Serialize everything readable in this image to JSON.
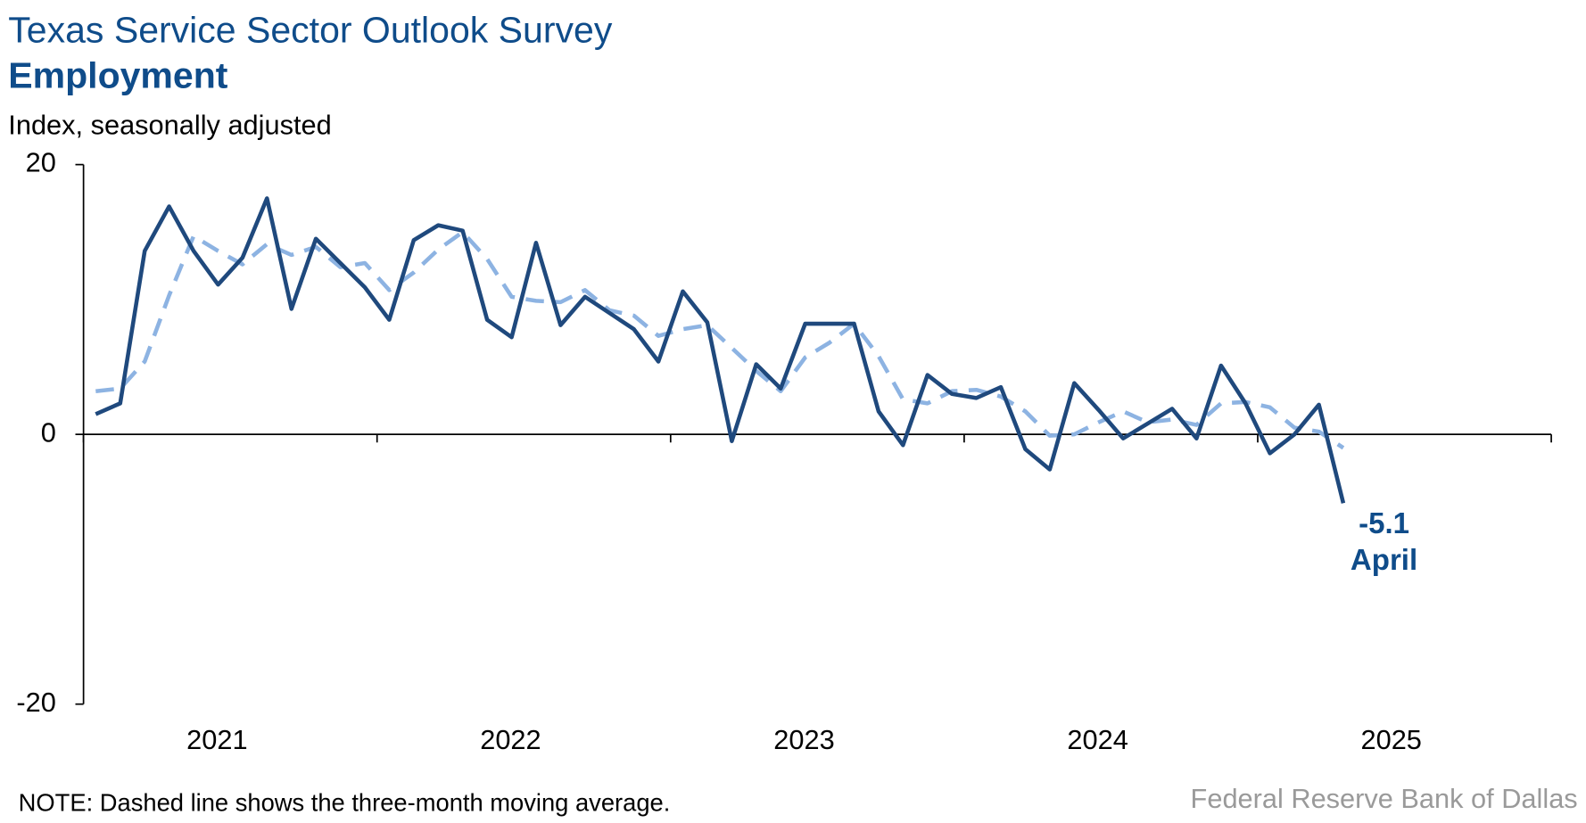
{
  "chart_data": {
    "type": "line",
    "title": "Texas Service Sector Outlook Survey",
    "subtitle": "Employment",
    "y_label": "Index, seasonally adjusted",
    "note": "NOTE: Dashed line shows the three-month moving average.",
    "source": "Federal Reserve Bank of Dallas",
    "years": [
      "2021",
      "2022",
      "2023",
      "2024",
      "2025"
    ],
    "ylim": [
      -20,
      20
    ],
    "yticks": [
      -20,
      0,
      20
    ],
    "annotations": [
      "-5.1",
      "April"
    ],
    "series": [
      {
        "color": "#1f497d",
        "dashed": false,
        "values": [
          1.5,
          2.3,
          13.6,
          16.9,
          13.6,
          11.1,
          13.1,
          17.5,
          9.3,
          14.5,
          12.7,
          10.9,
          8.5,
          14.4,
          15.5,
          15.1,
          8.5,
          7.2,
          14.2,
          8.1,
          10.2,
          9.0,
          7.8,
          5.4,
          10.6,
          8.3,
          -0.5,
          5.2,
          3.4,
          8.2,
          8.2,
          8.2,
          1.7,
          -0.8,
          4.4,
          3.0,
          2.7,
          3.5,
          -1.1,
          -2.6,
          3.8,
          1.8,
          -0.3,
          0.8,
          1.9,
          -0.3,
          5.1,
          2.3,
          -1.4,
          0.0,
          2.2,
          -5.1
        ]
      },
      {
        "color": "#8db3e2",
        "dashed": true,
        "values": [
          3.2,
          3.4,
          5.4,
          10.3,
          14.7,
          13.6,
          12.6,
          14.1,
          13.3,
          13.9,
          12.4,
          12.7,
          10.7,
          12.0,
          13.7,
          15.0,
          13.0,
          10.2,
          9.9,
          9.8,
          10.7,
          9.2,
          8.8,
          7.3,
          7.8,
          8.1,
          6.4,
          4.7,
          3.2,
          5.7,
          6.8,
          8.2,
          5.8,
          2.6,
          2.3,
          3.2,
          3.3,
          2.8,
          1.7,
          -0.1,
          0.0,
          0.9,
          1.7,
          0.9,
          1.1,
          0.7,
          2.3,
          2.4,
          2.0,
          0.5,
          0.2,
          -1.0
        ]
      }
    ]
  }
}
